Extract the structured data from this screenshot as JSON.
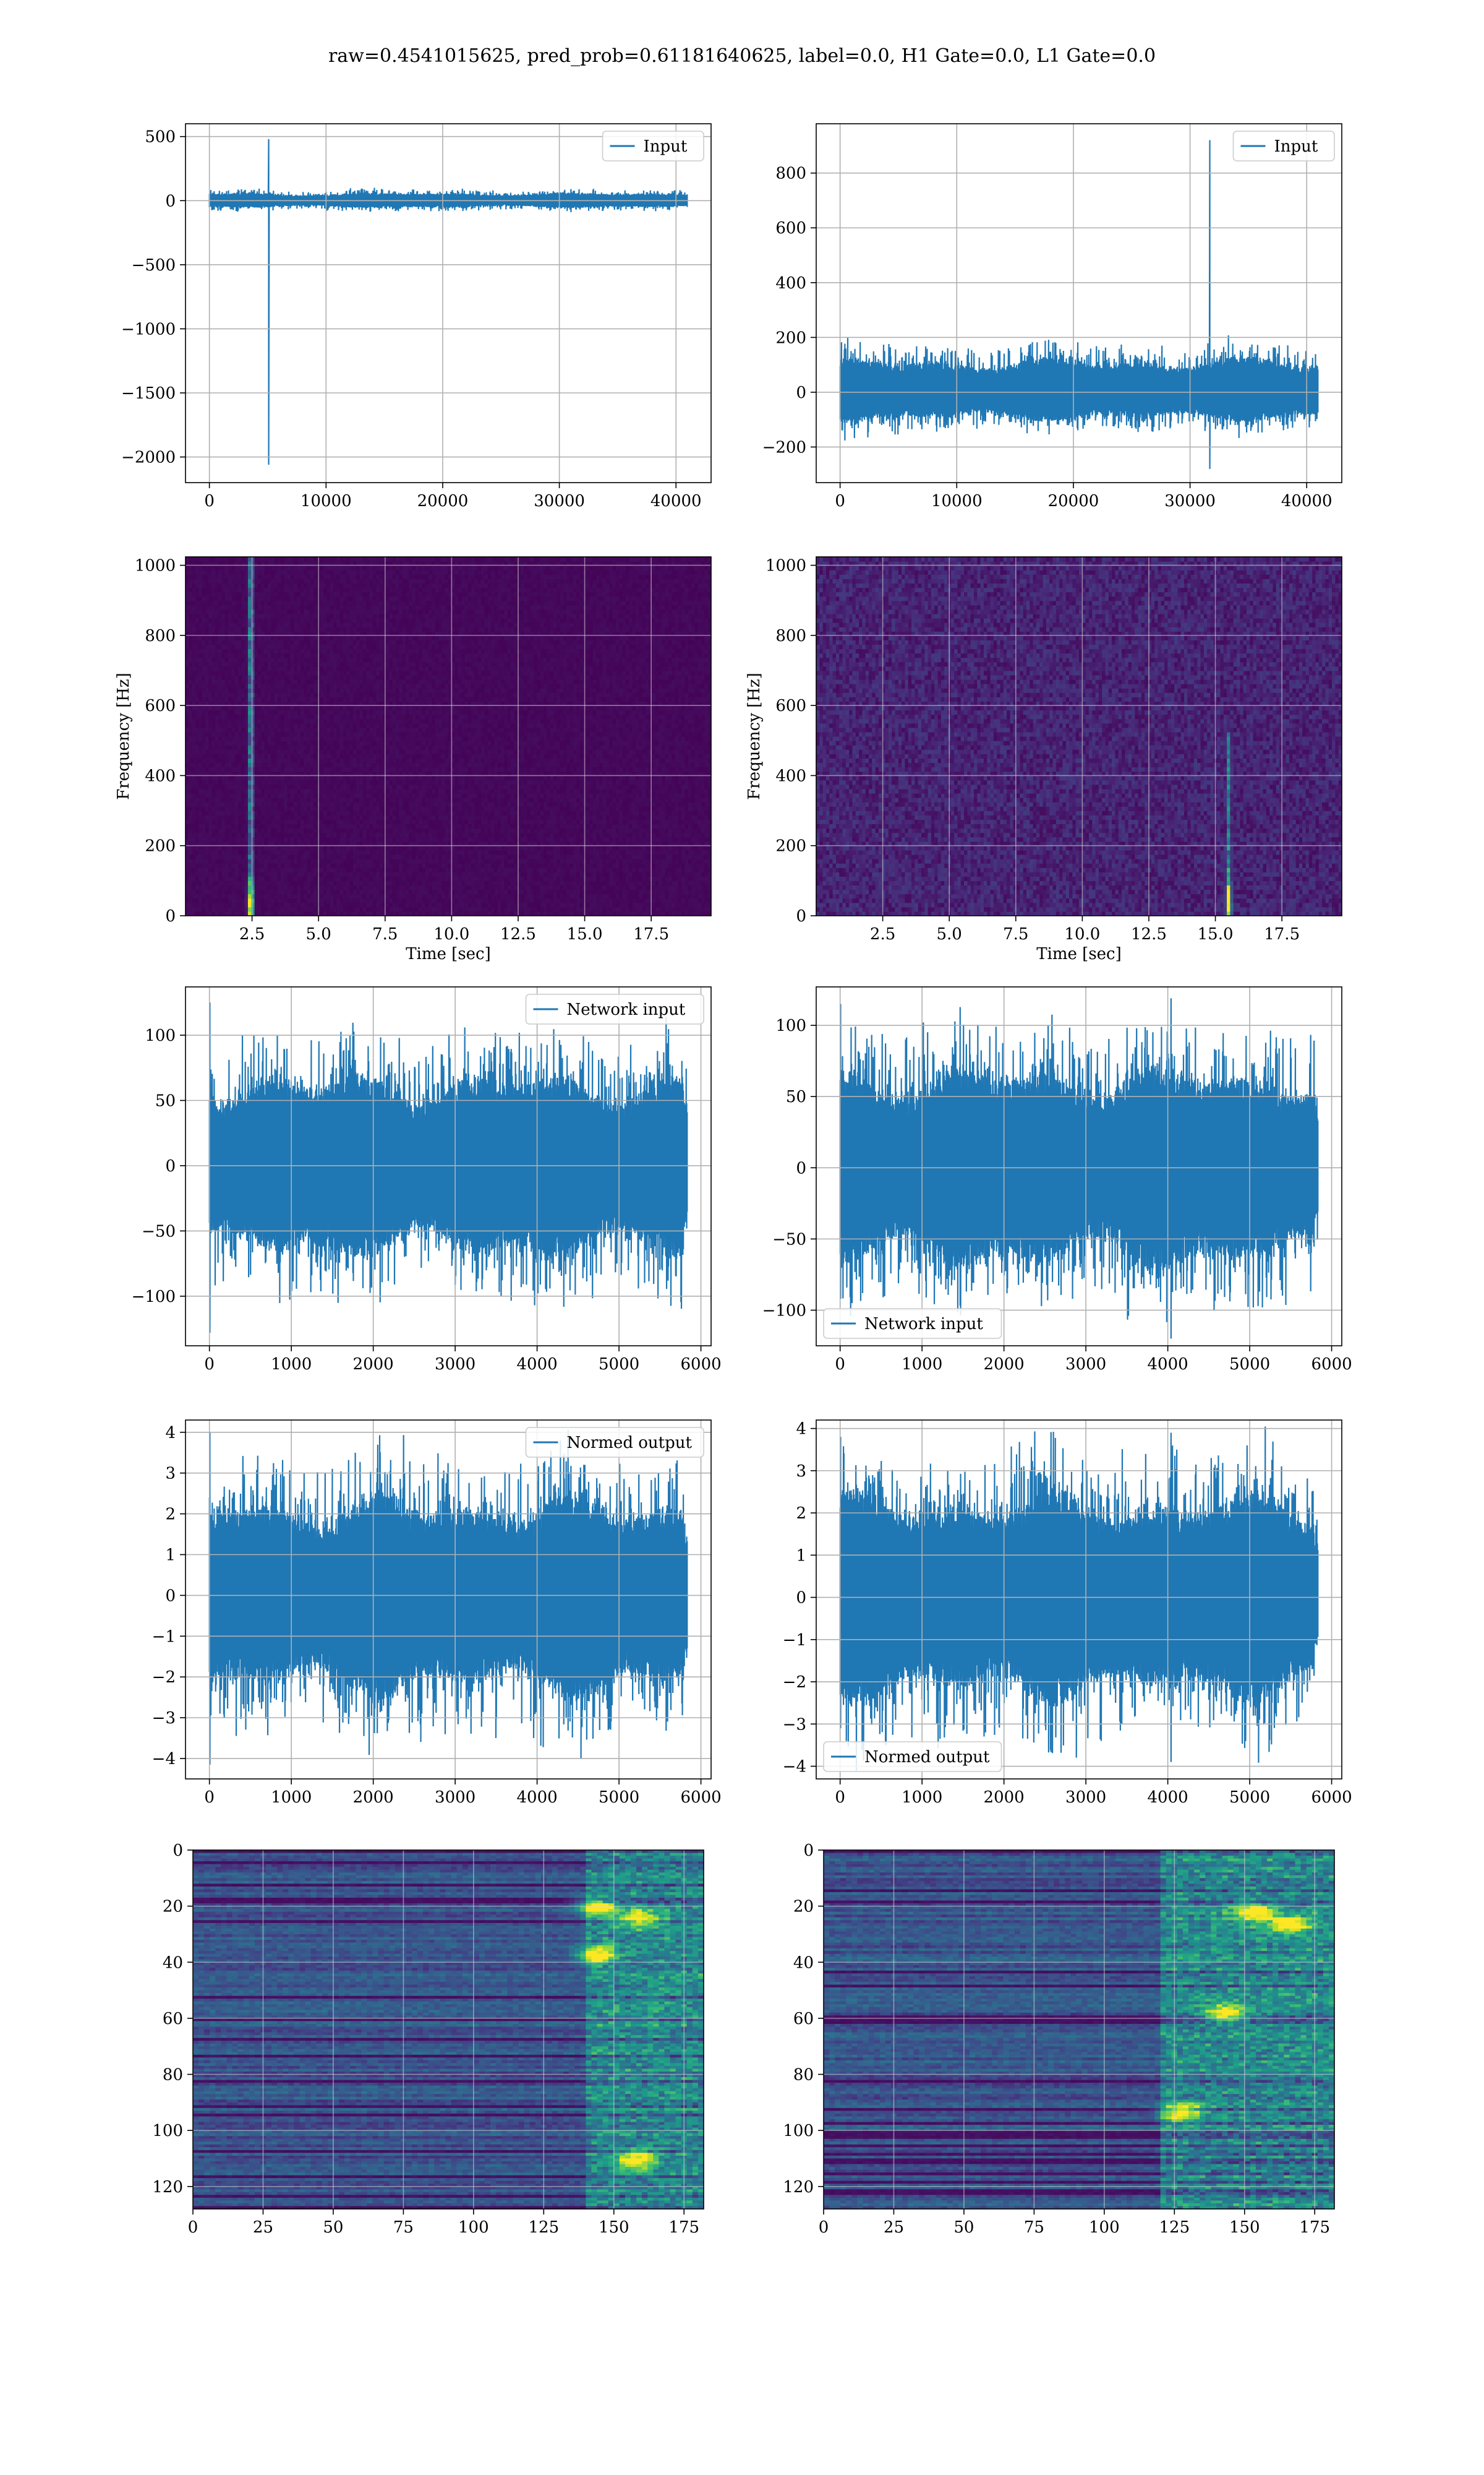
{
  "figure": {
    "title": "raw=0.4541015625, pred_prob=0.61181640625, label=0.0, H1 Gate=0.0, L1 Gate=0.0"
  },
  "colors": {
    "line": "#1f77b4",
    "grid": "#b0b0b0",
    "viridis_low": "#440154",
    "viridis_high": "#fde725"
  },
  "chart_data": [
    {
      "id": "h1-input",
      "type": "line",
      "legend": [
        "Input"
      ],
      "legend_loc": "upper right",
      "xlim": [
        -2048,
        43008
      ],
      "ylim": [
        -2200,
        600
      ],
      "xticks": [
        0,
        10000,
        20000,
        30000,
        40000
      ],
      "yticks": [
        -2000,
        -1500,
        -1000,
        -500,
        0,
        500
      ],
      "ytick_labels": [
        "−2000",
        "−1500",
        "−1000",
        "−500",
        "0",
        "500"
      ],
      "grid": true,
      "noise": {
        "n": 40960,
        "band": [
          -60,
          65
        ]
      },
      "spikes": [
        {
          "x": 5100,
          "max": 480,
          "min": -2060
        }
      ]
    },
    {
      "id": "l1-input",
      "type": "line",
      "legend": [
        "Input"
      ],
      "legend_loc": "upper right",
      "xlim": [
        -2048,
        43008
      ],
      "ylim": [
        -330,
        980
      ],
      "xticks": [
        0,
        10000,
        20000,
        30000,
        40000
      ],
      "yticks": [
        -200,
        0,
        200,
        400,
        600,
        800
      ],
      "ytick_labels": [
        "−200",
        "0",
        "200",
        "400",
        "600",
        "800"
      ],
      "grid": true,
      "noise": {
        "n": 40960,
        "band": [
          -110,
          130
        ]
      },
      "spikes": [
        {
          "x": 31700,
          "max": 920,
          "min": -280
        },
        {
          "x": 27600,
          "max": 170,
          "min": -40
        }
      ]
    },
    {
      "id": "h1-spectrogram",
      "type": "heatmap",
      "xlabel": "Time [sec]",
      "ylabel": "Frequency [Hz]",
      "xlim": [
        0,
        19.75
      ],
      "ylim": [
        0,
        1024
      ],
      "xticks": [
        2.5,
        5.0,
        7.5,
        10.0,
        12.5,
        15.0,
        17.5
      ],
      "xtick_labels": [
        "2.5",
        "5.0",
        "7.5",
        "10.0",
        "12.5",
        "15.0",
        "17.5"
      ],
      "yticks": [
        0,
        200,
        400,
        600,
        800,
        1000
      ],
      "grid": true,
      "background_level": 0.02,
      "features": [
        {
          "t": 2.45,
          "f_min": 0,
          "f_max": 1024,
          "peak_f": 40
        }
      ]
    },
    {
      "id": "l1-spectrogram",
      "type": "heatmap",
      "xlabel": "Time [sec]",
      "ylabel": "Frequency [Hz]",
      "xlim": [
        0,
        19.75
      ],
      "ylim": [
        0,
        1024
      ],
      "xticks": [
        2.5,
        5.0,
        7.5,
        10.0,
        12.5,
        15.0,
        17.5
      ],
      "xtick_labels": [
        "2.5",
        "5.0",
        "7.5",
        "10.0",
        "12.5",
        "15.0",
        "17.5"
      ],
      "yticks": [
        0,
        200,
        400,
        600,
        800,
        1000
      ],
      "grid": true,
      "background_level": 0.1,
      "features": [
        {
          "t": 15.5,
          "f_min": 0,
          "f_max": 520,
          "peak_f": 40
        }
      ]
    },
    {
      "id": "h1-network-input",
      "type": "line",
      "legend": [
        "Network input"
      ],
      "legend_loc": "upper right",
      "xlim": [
        -292,
        6124
      ],
      "ylim": [
        -138,
        137
      ],
      "xticks": [
        0,
        1000,
        2000,
        3000,
        4000,
        5000,
        6000
      ],
      "yticks": [
        -100,
        -50,
        0,
        50,
        100
      ],
      "ytick_labels": [
        "−100",
        "−50",
        "0",
        "50",
        "100"
      ],
      "grid": true,
      "noise": {
        "n": 5832,
        "band": [
          -75,
          75
        ]
      },
      "spikes": [
        {
          "x": 5,
          "max": 125,
          "min": -128
        }
      ]
    },
    {
      "id": "l1-network-input",
      "type": "line",
      "legend": [
        "Network input"
      ],
      "legend_loc": "lower left",
      "xlim": [
        -292,
        6124
      ],
      "ylim": [
        -125,
        127
      ],
      "xticks": [
        0,
        1000,
        2000,
        3000,
        4000,
        5000,
        6000
      ],
      "yticks": [
        -100,
        -50,
        0,
        50,
        100
      ],
      "ytick_labels": [
        "−100",
        "−50",
        "0",
        "50",
        "100"
      ],
      "grid": true,
      "noise": {
        "n": 5832,
        "band": [
          -75,
          75
        ]
      },
      "spikes": [
        {
          "x": 5,
          "max": 115,
          "min": -92
        },
        {
          "x": 4040,
          "max": 119,
          "min": -120
        }
      ]
    },
    {
      "id": "h1-normed-output",
      "type": "line",
      "legend": [
        "Normed output"
      ],
      "legend_loc": "upper right",
      "xlim": [
        -292,
        6124
      ],
      "ylim": [
        -4.5,
        4.3
      ],
      "xticks": [
        0,
        1000,
        2000,
        3000,
        4000,
        5000,
        6000
      ],
      "yticks": [
        -4,
        -3,
        -2,
        -1,
        0,
        1,
        2,
        3,
        4
      ],
      "ytick_labels": [
        "−4",
        "−3",
        "−2",
        "−1",
        "0",
        "1",
        "2",
        "3",
        "4"
      ],
      "grid": true,
      "noise": {
        "n": 5832,
        "band": [
          -2.6,
          2.6
        ]
      },
      "spikes": [
        {
          "x": 5,
          "max": 4.0,
          "min": -4.15
        }
      ]
    },
    {
      "id": "l1-normed-output",
      "type": "line",
      "legend": [
        "Normed output"
      ],
      "legend_loc": "lower left",
      "xlim": [
        -292,
        6124
      ],
      "ylim": [
        -4.3,
        4.2
      ],
      "xticks": [
        0,
        1000,
        2000,
        3000,
        4000,
        5000,
        6000
      ],
      "yticks": [
        -4,
        -3,
        -2,
        -1,
        0,
        1,
        2,
        3,
        4
      ],
      "ytick_labels": [
        "−4",
        "−3",
        "−2",
        "−1",
        "0",
        "1",
        "2",
        "3",
        "4"
      ],
      "grid": true,
      "noise": {
        "n": 5832,
        "band": [
          -2.6,
          2.6
        ]
      },
      "spikes": [
        {
          "x": 5,
          "max": 3.8,
          "min": -3.1
        },
        {
          "x": 4040,
          "max": 3.9,
          "min": -3.9
        }
      ]
    },
    {
      "id": "h1-feature-map",
      "type": "heatmap",
      "xlim": [
        0,
        182
      ],
      "ylim": [
        128,
        0
      ],
      "xticks": [
        0,
        25,
        50,
        75,
        100,
        125,
        150,
        175
      ],
      "yticks": [
        0,
        20,
        40,
        60,
        80,
        100,
        120
      ],
      "grid": true,
      "rows": 128,
      "cols": 182,
      "active_cols_from": 140,
      "hot_spots": [
        {
          "row": 24,
          "col": 158
        },
        {
          "row": 20,
          "col": 143
        },
        {
          "row": 37,
          "col": 143
        },
        {
          "row": 110,
          "col": 157
        }
      ]
    },
    {
      "id": "l1-feature-map",
      "type": "heatmap",
      "xlim": [
        0,
        182
      ],
      "ylim": [
        128,
        0
      ],
      "xticks": [
        0,
        25,
        50,
        75,
        100,
        125,
        150,
        175
      ],
      "yticks": [
        0,
        20,
        40,
        60,
        80,
        100,
        120
      ],
      "grid": true,
      "rows": 128,
      "cols": 182,
      "active_cols_from": 120,
      "hot_spots": [
        {
          "row": 22,
          "col": 152
        },
        {
          "row": 58,
          "col": 142
        },
        {
          "row": 93,
          "col": 127
        },
        {
          "row": 26,
          "col": 165
        }
      ]
    }
  ]
}
